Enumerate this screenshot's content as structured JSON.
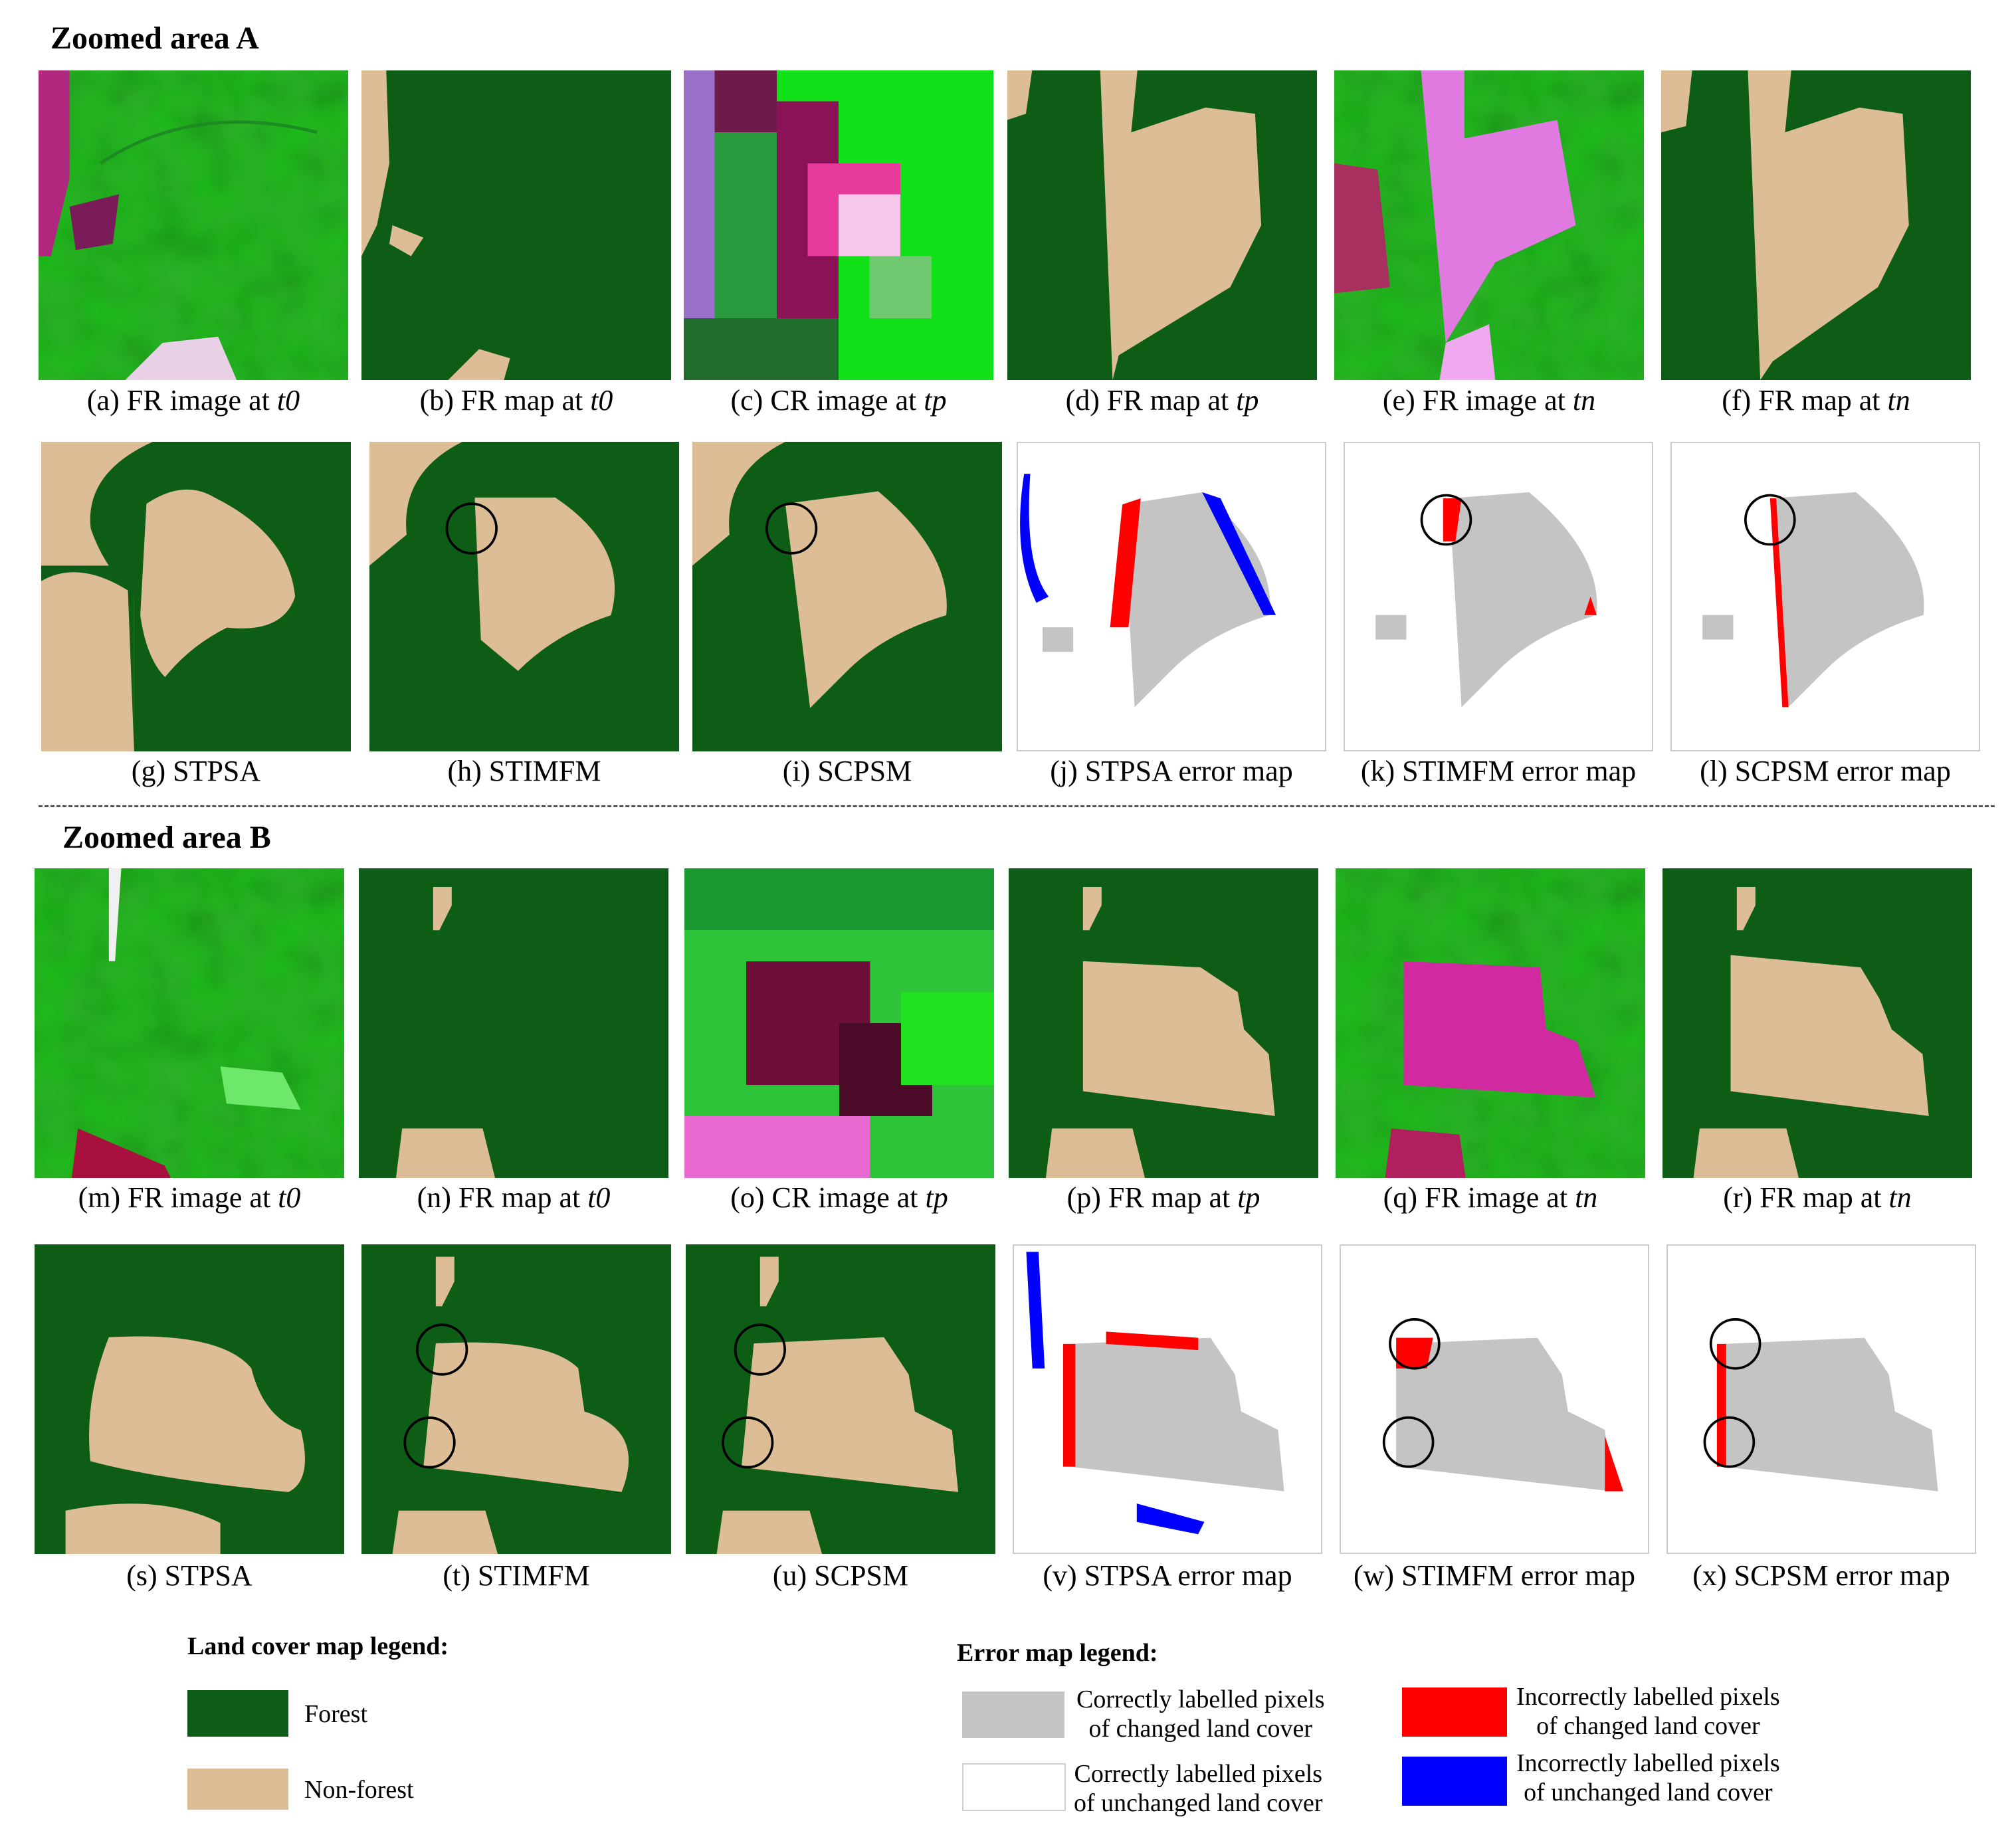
{
  "headings": {
    "area_a": "Zoomed area A",
    "area_b": "Zoomed area B"
  },
  "colors": {
    "forest": "#0e5d17",
    "nonforest": "#dcbd96",
    "correct_changed": "#c4c4c4",
    "correct_unchanged": "#ffffff",
    "incorrect_changed": "#ff0000",
    "incorrect_unchanged": "#0000ff"
  },
  "area_a": {
    "captions": [
      {
        "letter": "(a)",
        "text": "FR image at",
        "sub": "t0"
      },
      {
        "letter": "(b)",
        "text": "FR map at",
        "sub": "t0"
      },
      {
        "letter": "(c)",
        "text": "CR image at",
        "sub": "tp"
      },
      {
        "letter": "(d)",
        "text": "FR map at",
        "sub": "tp"
      },
      {
        "letter": "(e)",
        "text": "FR image at",
        "sub": "tn"
      },
      {
        "letter": "(f)",
        "text": "FR map at",
        "sub": "tn"
      },
      {
        "letter": "(g)",
        "text": "STPSA",
        "sub": ""
      },
      {
        "letter": "(h)",
        "text": "STIMFM",
        "sub": ""
      },
      {
        "letter": "(i)",
        "text": "SCPSM",
        "sub": ""
      },
      {
        "letter": "(j)",
        "text": "STPSA error map",
        "sub": ""
      },
      {
        "letter": "(k)",
        "text": "STIMFM error map",
        "sub": ""
      },
      {
        "letter": "(l)",
        "text": "SCPSM error map",
        "sub": ""
      }
    ]
  },
  "area_b": {
    "captions": [
      {
        "letter": "(m)",
        "text": "FR image at",
        "sub": "t0"
      },
      {
        "letter": "(n)",
        "text": "FR map at",
        "sub": "t0"
      },
      {
        "letter": "(o)",
        "text": "CR image at",
        "sub": "tp"
      },
      {
        "letter": "(p)",
        "text": "FR map at",
        "sub": "tp"
      },
      {
        "letter": "(q)",
        "text": "FR image at",
        "sub": "tn"
      },
      {
        "letter": "(r)",
        "text": "FR map at",
        "sub": "tn"
      },
      {
        "letter": "(s)",
        "text": "STPSA",
        "sub": ""
      },
      {
        "letter": "(t)",
        "text": "STIMFM",
        "sub": ""
      },
      {
        "letter": "(u)",
        "text": "SCPSM",
        "sub": ""
      },
      {
        "letter": "(v)",
        "text": "STPSA error map",
        "sub": ""
      },
      {
        "letter": "(w)",
        "text": "STIMFM error map",
        "sub": ""
      },
      {
        "letter": "(x)",
        "text": "SCPSM error map",
        "sub": ""
      }
    ]
  },
  "land_legend": {
    "title": "Land cover map legend:",
    "items": [
      {
        "label": "Forest"
      },
      {
        "label": "Non-forest"
      }
    ]
  },
  "error_legend": {
    "title": "Error map legend:",
    "items": [
      {
        "line1": "Correctly labelled pixels",
        "line2": "of changed land cover"
      },
      {
        "line1": "Correctly labelled pixels",
        "line2": "of unchanged land cover"
      },
      {
        "line1": "Incorrectly labelled pixels",
        "line2": "of changed land cover"
      },
      {
        "line1": "Incorrectly labelled pixels",
        "line2": "of unchanged land cover"
      }
    ]
  }
}
